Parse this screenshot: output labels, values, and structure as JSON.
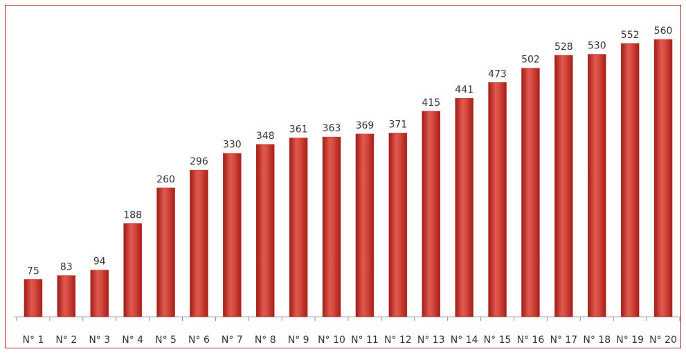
{
  "chart_data": {
    "type": "bar",
    "categories": [
      "N° 1",
      "N° 2",
      "N° 3",
      "N° 4",
      "N° 5",
      "N° 6",
      "N° 7",
      "N° 8",
      "N° 9",
      "N° 10",
      "N° 11",
      "N° 12",
      "N° 13",
      "N° 14",
      "N° 15",
      "N° 16",
      "N° 17",
      "N° 18",
      "N° 19",
      "N° 20"
    ],
    "values": [
      75,
      83,
      94,
      188,
      260,
      296,
      330,
      348,
      361,
      363,
      369,
      371,
      415,
      441,
      473,
      502,
      528,
      530,
      552,
      560
    ],
    "color": "#c8322c",
    "ylim": [
      0,
      600
    ],
    "grid": false
  }
}
